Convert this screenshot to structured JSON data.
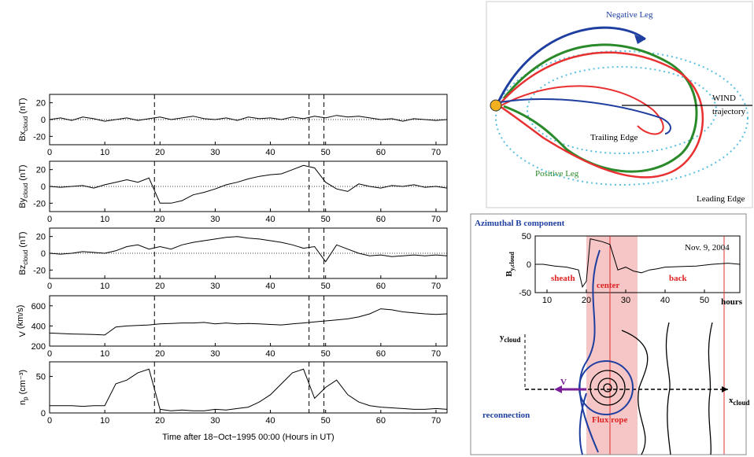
{
  "chart_data": [
    {
      "type": "line",
      "ylabel": {
        "main": "Bx",
        "sub": "cloud",
        "unit": " (nT)"
      },
      "x": [
        0,
        2,
        4,
        6,
        8,
        10,
        12,
        14,
        16,
        18,
        20,
        22,
        24,
        26,
        28,
        30,
        32,
        34,
        36,
        38,
        40,
        42,
        44,
        46,
        48,
        50,
        52,
        54,
        56,
        58,
        60,
        62,
        64,
        66,
        68,
        70,
        72
      ],
      "series": [
        {
          "color": "#000000",
          "values": [
            0,
            2,
            -1,
            3,
            1,
            -2,
            0,
            2,
            -1,
            1,
            3,
            0,
            2,
            4,
            1,
            0,
            2,
            -1,
            3,
            1,
            2,
            0,
            3,
            1,
            4,
            2,
            5,
            3,
            4,
            2,
            0,
            1,
            -2,
            1,
            0,
            -1,
            0
          ]
        }
      ],
      "xlim": [
        0,
        72
      ],
      "ylim": [
        -30,
        30
      ],
      "xticks": [
        0,
        10,
        20,
        30,
        40,
        50,
        60,
        70
      ],
      "yticks": [
        -20,
        0,
        20
      ],
      "vlines": [
        19,
        47,
        49.7
      ],
      "hlines": [
        0
      ]
    },
    {
      "type": "line",
      "ylabel": {
        "main": "By",
        "sub": "cloud",
        "unit": " (nT)"
      },
      "x": [
        0,
        2,
        4,
        6,
        8,
        10,
        12,
        14,
        16,
        18,
        20,
        22,
        24,
        26,
        28,
        30,
        32,
        34,
        36,
        38,
        40,
        42,
        44,
        46,
        48,
        50,
        52,
        54,
        56,
        58,
        60,
        62,
        64,
        66,
        68,
        70,
        72
      ],
      "series": [
        {
          "color": "#000000",
          "values": [
            0,
            -1,
            0,
            1,
            -2,
            2,
            5,
            8,
            5,
            10,
            -20,
            -20,
            -17,
            -10,
            -7,
            -3,
            2,
            5,
            9,
            12,
            14,
            15,
            20,
            25,
            22,
            5,
            -3,
            -6,
            3,
            0,
            -2,
            1,
            0,
            2,
            -1,
            0,
            -2
          ]
        }
      ],
      "xlim": [
        0,
        72
      ],
      "ylim": [
        -30,
        30
      ],
      "xticks": [
        0,
        10,
        20,
        30,
        40,
        50,
        60,
        70
      ],
      "yticks": [
        -20,
        0,
        20
      ],
      "vlines": [
        19,
        47,
        49.7
      ],
      "hlines": [
        0
      ]
    },
    {
      "type": "line",
      "ylabel": {
        "main": "Bz",
        "sub": "cloud",
        "unit": " (nT)"
      },
      "x": [
        0,
        2,
        4,
        6,
        8,
        10,
        12,
        14,
        16,
        18,
        20,
        22,
        24,
        26,
        28,
        30,
        32,
        34,
        36,
        38,
        40,
        42,
        44,
        46,
        48,
        50,
        52,
        54,
        56,
        58,
        60,
        62,
        64,
        66,
        68,
        70,
        72
      ],
      "series": [
        {
          "color": "#000000",
          "values": [
            0,
            -1,
            0,
            2,
            1,
            0,
            3,
            8,
            10,
            5,
            8,
            5,
            10,
            13,
            15,
            17,
            19,
            20,
            18,
            17,
            15,
            13,
            10,
            6,
            8,
            -10,
            10,
            5,
            0,
            -3,
            -2,
            -4,
            -3,
            -2,
            -3,
            -2,
            -3
          ]
        }
      ],
      "xlim": [
        0,
        72
      ],
      "ylim": [
        -30,
        30
      ],
      "xticks": [
        0,
        10,
        20,
        30,
        40,
        50,
        60,
        70
      ],
      "yticks": [
        -20,
        0,
        20
      ],
      "vlines": [
        19,
        47,
        49.7
      ],
      "hlines": [
        0
      ]
    },
    {
      "type": "line",
      "ylabel": {
        "main": "V",
        "sub": "",
        "unit": " (km/s)"
      },
      "x": [
        0,
        2,
        4,
        6,
        8,
        10,
        12,
        14,
        16,
        18,
        20,
        22,
        24,
        26,
        28,
        30,
        32,
        34,
        36,
        38,
        40,
        42,
        44,
        46,
        48,
        50,
        52,
        54,
        56,
        58,
        60,
        62,
        64,
        66,
        68,
        70,
        72
      ],
      "series": [
        {
          "color": "#000000",
          "values": [
            330,
            325,
            320,
            318,
            315,
            310,
            390,
            400,
            405,
            410,
            420,
            425,
            430,
            430,
            435,
            420,
            430,
            420,
            425,
            420,
            415,
            410,
            420,
            430,
            440,
            450,
            460,
            470,
            490,
            520,
            570,
            560,
            540,
            530,
            520,
            515,
            520
          ]
        }
      ],
      "xlim": [
        0,
        72
      ],
      "ylim": [
        200,
        700
      ],
      "xticks": [
        0,
        10,
        20,
        30,
        40,
        50,
        60,
        70
      ],
      "yticks": [
        200,
        400,
        600
      ],
      "vlines": [
        19,
        47,
        49.7
      ]
    },
    {
      "type": "line",
      "ylabel": {
        "main": "n",
        "sub": "p",
        "unit": " (cm⁻³)"
      },
      "xlabel": "Time after 18−Oct−1995 00:00 (Hours in UT)",
      "x": [
        0,
        2,
        4,
        6,
        8,
        10,
        12,
        14,
        16,
        18,
        20,
        22,
        24,
        26,
        28,
        30,
        32,
        34,
        36,
        38,
        40,
        42,
        44,
        46,
        48,
        50,
        52,
        54,
        56,
        58,
        60,
        62,
        64,
        66,
        68,
        70,
        72
      ],
      "series": [
        {
          "color": "#000000",
          "values": [
            10,
            10,
            10,
            9,
            10,
            10,
            40,
            45,
            55,
            60,
            5,
            3,
            4,
            3,
            3,
            5,
            4,
            6,
            8,
            15,
            25,
            40,
            55,
            60,
            20,
            35,
            45,
            25,
            15,
            10,
            8,
            7,
            6,
            5,
            5,
            6,
            5
          ]
        }
      ],
      "xlim": [
        0,
        72
      ],
      "ylim": [
        0,
        70
      ],
      "xticks": [
        0,
        10,
        20,
        30,
        40,
        50,
        60,
        70
      ],
      "yticks": [
        0,
        50
      ],
      "vlines": [
        19,
        47,
        49.7
      ]
    },
    {
      "type": "line",
      "title": "Azimuthal B component",
      "ylabel": {
        "main": "B",
        "sub": "y,cloud",
        "unit": ""
      },
      "annotation": "Nov. 9, 2004",
      "xunit": "hours",
      "regions": [
        "sheath",
        "center",
        "back"
      ],
      "x": [
        7,
        9,
        12,
        15,
        18,
        19,
        20,
        21,
        24,
        26,
        28,
        30,
        32,
        34,
        36,
        38,
        40,
        44,
        48,
        52,
        56,
        59
      ],
      "series": [
        {
          "color": "#000000",
          "values": [
            0,
            0,
            -3,
            -5,
            -10,
            -40,
            -30,
            45,
            40,
            35,
            -10,
            -5,
            -12,
            -15,
            -10,
            -8,
            -5,
            -4,
            -3,
            0,
            2,
            0
          ]
        }
      ],
      "xlim": [
        7,
        59
      ],
      "ylim": [
        -50,
        50
      ],
      "xticks": [
        10,
        20,
        30,
        40,
        50
      ],
      "yticks": [
        -50,
        0,
        50
      ],
      "shade": [
        20,
        33
      ],
      "shade_color": "#f4b8b8",
      "vlines": [
        26,
        55
      ],
      "vline_color": "#e03030"
    }
  ],
  "diagram_top": {
    "negative_leg": "Negative Leg",
    "wind": "WIND",
    "trajectory": "trajectory",
    "trailing_edge": "Trailing Edge",
    "positive_leg": "Positive Leg",
    "leading_edge": "Leading Edge"
  },
  "diagram_bottom": {
    "y_axis": "y",
    "y_sub": "cloud",
    "x_axis": "x",
    "x_sub": "cloud",
    "velocity": "V",
    "reconnection": "reconnection",
    "flux_rope": "Flux rope"
  }
}
